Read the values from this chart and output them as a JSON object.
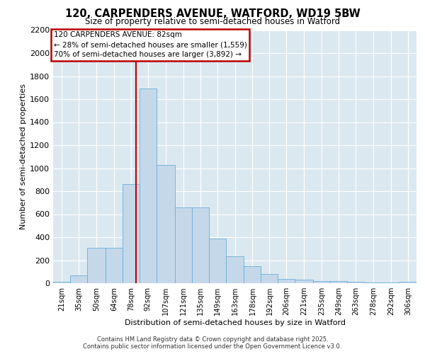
{
  "title1": "120, CARPENDERS AVENUE, WATFORD, WD19 5BW",
  "title2": "Size of property relative to semi-detached houses in Watford",
  "xlabel": "Distribution of semi-detached houses by size in Watford",
  "ylabel": "Number of semi-detached properties",
  "bin_labels": [
    "21sqm",
    "35sqm",
    "50sqm",
    "64sqm",
    "78sqm",
    "92sqm",
    "107sqm",
    "121sqm",
    "135sqm",
    "149sqm",
    "163sqm",
    "178sqm",
    "192sqm",
    "206sqm",
    "221sqm",
    "235sqm",
    "249sqm",
    "263sqm",
    "278sqm",
    "292sqm",
    "306sqm"
  ],
  "bin_edges": [
    14,
    28,
    42,
    57,
    71,
    85,
    99,
    114,
    128,
    142,
    156,
    171,
    185,
    199,
    213,
    228,
    242,
    256,
    270,
    285,
    299,
    313
  ],
  "bar_heights": [
    15,
    70,
    310,
    310,
    860,
    1690,
    1030,
    660,
    660,
    390,
    235,
    145,
    80,
    35,
    30,
    20,
    20,
    10,
    5,
    5,
    10
  ],
  "bar_color": "#c5d8ea",
  "bar_edgecolor": "#6aaed6",
  "property_size": 82,
  "red_line_color": "#bb0000",
  "annotation_box_edgecolor": "#bb0000",
  "annotation_title": "120 CARPENDERS AVENUE: 82sqm",
  "annotation_line1": "← 28% of semi-detached houses are smaller (1,559)",
  "annotation_line2": "70% of semi-detached houses are larger (3,892) →",
  "ylim_max": 2200,
  "yticks": [
    0,
    200,
    400,
    600,
    800,
    1000,
    1200,
    1400,
    1600,
    1800,
    2000,
    2200
  ],
  "footer1": "Contains HM Land Registry data © Crown copyright and database right 2025.",
  "footer2": "Contains public sector information licensed under the Open Government Licence v3.0.",
  "plot_bg_color": "#dce8f0",
  "grid_color": "#ffffff",
  "fig_bg_color": "#ffffff"
}
